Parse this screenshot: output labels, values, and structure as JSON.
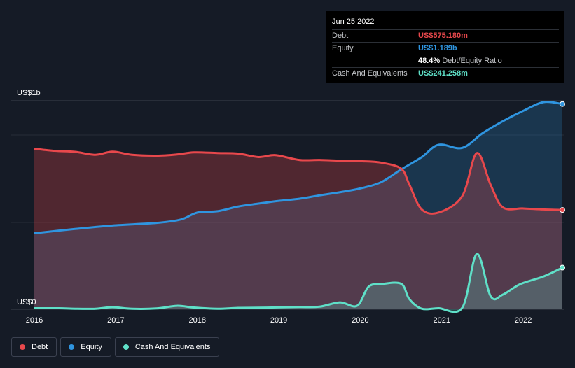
{
  "tooltip": {
    "date": "Jun 25 2022",
    "rows": [
      {
        "label": "Debt",
        "value": "US$575.180m",
        "color": "#e8484c"
      },
      {
        "label": "Equity",
        "value": "US$1.189b",
        "color": "#2f95e0"
      },
      {
        "label": "",
        "value": "48.4%",
        "extra": "Debt/Equity Ratio",
        "color": "#ffffff"
      },
      {
        "label": "Cash And Equivalents",
        "value": "US$241.258m",
        "color": "#5fe0c8"
      }
    ]
  },
  "legend": [
    {
      "label": "Debt",
      "color": "#e8484c"
    },
    {
      "label": "Equity",
      "color": "#2f95e0"
    },
    {
      "label": "Cash And Equivalents",
      "color": "#5fe0c8"
    }
  ],
  "chart_data": {
    "type": "area",
    "title": "",
    "xlabel": "",
    "ylabel": "",
    "y_unit": "US$ millions",
    "ylim": [
      0,
      1200
    ],
    "y_ticks": [
      {
        "value": 1200,
        "label": "US$1b"
      },
      {
        "value": 0,
        "label": "US$0"
      }
    ],
    "x_ticks": [
      2016,
      2017,
      2018,
      2019,
      2020,
      2021,
      2022
    ],
    "xlim": [
      2016.0,
      2022.48
    ],
    "series": [
      {
        "name": "Debt",
        "color": "#e8484c",
        "points": [
          [
            2016.0,
            930
          ],
          [
            2016.25,
            918
          ],
          [
            2016.5,
            912
          ],
          [
            2016.75,
            895
          ],
          [
            2016.96,
            913
          ],
          [
            2017.2,
            895
          ],
          [
            2017.5,
            890
          ],
          [
            2017.75,
            897
          ],
          [
            2017.96,
            909
          ],
          [
            2018.25,
            905
          ],
          [
            2018.5,
            902
          ],
          [
            2018.75,
            882
          ],
          [
            2018.96,
            893
          ],
          [
            2019.25,
            865
          ],
          [
            2019.5,
            865
          ],
          [
            2019.75,
            861
          ],
          [
            2020.0,
            858
          ],
          [
            2020.25,
            850
          ],
          [
            2020.5,
            815
          ],
          [
            2020.6,
            725
          ],
          [
            2020.75,
            580
          ],
          [
            2020.96,
            560
          ],
          [
            2021.25,
            655
          ],
          [
            2021.43,
            905
          ],
          [
            2021.6,
            720
          ],
          [
            2021.75,
            590
          ],
          [
            2022.0,
            584
          ],
          [
            2022.25,
            578
          ],
          [
            2022.48,
            575
          ]
        ]
      },
      {
        "name": "Equity",
        "color": "#2f95e0",
        "points": [
          [
            2016.0,
            440
          ],
          [
            2016.5,
            465
          ],
          [
            2016.96,
            485
          ],
          [
            2017.5,
            500
          ],
          [
            2017.8,
            520
          ],
          [
            2018.0,
            560
          ],
          [
            2018.25,
            568
          ],
          [
            2018.5,
            595
          ],
          [
            2018.75,
            612
          ],
          [
            2019.0,
            628
          ],
          [
            2019.25,
            640
          ],
          [
            2019.5,
            660
          ],
          [
            2019.75,
            678
          ],
          [
            2020.0,
            700
          ],
          [
            2020.25,
            735
          ],
          [
            2020.5,
            810
          ],
          [
            2020.75,
            880
          ],
          [
            2020.96,
            953
          ],
          [
            2021.25,
            935
          ],
          [
            2021.5,
            1020
          ],
          [
            2021.75,
            1090
          ],
          [
            2022.0,
            1150
          ],
          [
            2022.25,
            1220
          ],
          [
            2022.48,
            1189
          ]
        ]
      },
      {
        "name": "Cash And Equivalents",
        "color": "#5fe0c8",
        "points": [
          [
            2016.0,
            6
          ],
          [
            2016.3,
            6
          ],
          [
            2016.5,
            3
          ],
          [
            2016.75,
            3
          ],
          [
            2016.96,
            12
          ],
          [
            2017.2,
            3
          ],
          [
            2017.5,
            5
          ],
          [
            2017.75,
            20
          ],
          [
            2017.96,
            10
          ],
          [
            2018.25,
            3
          ],
          [
            2018.5,
            8
          ],
          [
            2018.75,
            9
          ],
          [
            2019.0,
            11
          ],
          [
            2019.25,
            13
          ],
          [
            2019.5,
            15
          ],
          [
            2019.75,
            40
          ],
          [
            2019.96,
            20
          ],
          [
            2020.1,
            130
          ],
          [
            2020.25,
            145
          ],
          [
            2020.5,
            148
          ],
          [
            2020.6,
            60
          ],
          [
            2020.75,
            4
          ],
          [
            2020.96,
            6
          ],
          [
            2021.25,
            8
          ],
          [
            2021.43,
            320
          ],
          [
            2021.6,
            75
          ],
          [
            2021.75,
            85
          ],
          [
            2021.96,
            145
          ],
          [
            2022.25,
            190
          ],
          [
            2022.48,
            241
          ]
        ]
      }
    ]
  }
}
